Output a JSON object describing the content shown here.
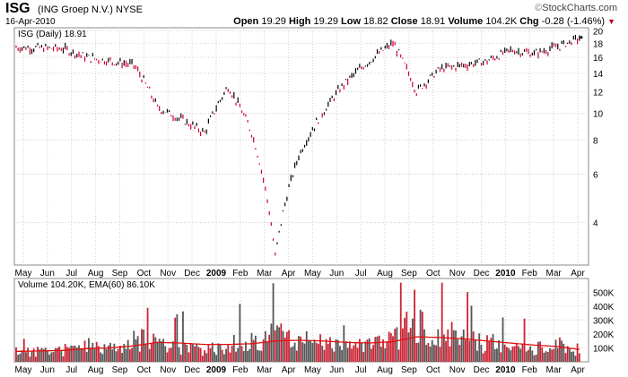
{
  "header": {
    "symbol": "ISG",
    "company": "(ING Groep N.V.)",
    "exchange": "NYSE",
    "date": "16-Apr-2010",
    "brand": "StockCharts.com",
    "open_label": "Open",
    "open": "19.29",
    "high_label": "High",
    "high": "19.29",
    "low_label": "Low",
    "low": "18.82",
    "close_label": "Close",
    "close": "18.91",
    "volume_label": "Volume",
    "volume": "104.2K",
    "chg_label": "Chg",
    "chg": "-0.28 (-1.46%)"
  },
  "price_panel": {
    "legend": "ISG (Daily) 18.91",
    "y_ticks": [
      20,
      18,
      16,
      14,
      12,
      10,
      8,
      6,
      4
    ],
    "scale": "log",
    "ylim": [
      2.8,
      20.5
    ]
  },
  "volume_panel": {
    "legend": "Volume 104.20K, EMA(60) 86.10K",
    "y_ticks": [
      "500K",
      "400K",
      "300K",
      "200K",
      "100K"
    ],
    "y_values": [
      500000,
      400000,
      300000,
      200000,
      100000
    ],
    "ylim": [
      0,
      600000
    ]
  },
  "x_axis": {
    "labels": [
      "May",
      "Jun",
      "Jul",
      "Aug",
      "Sep",
      "Oct",
      "Nov",
      "Dec",
      "2009",
      "Feb",
      "Mar",
      "Apr",
      "May",
      "Jun",
      "Jul",
      "Aug",
      "Sep",
      "Oct",
      "Nov",
      "Dec",
      "2010",
      "Feb",
      "Mar",
      "Apr"
    ],
    "bold": [
      "2009",
      "2010"
    ]
  },
  "colors": {
    "up": "#000000",
    "down": "#cc0033",
    "ema": "#e01010",
    "volume_up": "#555555",
    "volume_down": "#cc2233",
    "grid": "#d0d0d0"
  },
  "chart_data": [
    {
      "type": "line",
      "title": "ISG (Daily) 18.91",
      "scale": "log",
      "x": [
        "2008-04",
        "2008-05",
        "2008-06",
        "2008-07",
        "2008-08",
        "2008-09",
        "2008-10",
        "2008-11",
        "2008-12",
        "2009-01",
        "2009-02",
        "2009-03",
        "2009-04",
        "2009-05",
        "2009-06",
        "2009-07",
        "2009-08",
        "2009-09",
        "2009-10",
        "2009-11",
        "2009-12",
        "2010-01",
        "2010-02",
        "2010-03",
        "2010-04"
      ],
      "series": [
        {
          "name": "ISG",
          "values": [
            17.4,
            17.3,
            17.2,
            16.0,
            15.5,
            15.0,
            10.5,
            9.5,
            8.5,
            12.5,
            8.5,
            3.0,
            7.0,
            10.0,
            13.0,
            15.5,
            18.0,
            12.0,
            14.5,
            15.0,
            15.5,
            17.0,
            16.5,
            17.5,
            18.91
          ]
        }
      ],
      "ylim": [
        2.8,
        20.5
      ]
    },
    {
      "type": "bar",
      "title": "Volume 104.20K, EMA(60) 86.10K",
      "x": [
        "2008-04",
        "2008-05",
        "2008-06",
        "2008-07",
        "2008-08",
        "2008-09",
        "2008-10",
        "2008-11",
        "2008-12",
        "2009-01",
        "2009-02",
        "2009-03",
        "2009-04",
        "2009-05",
        "2009-06",
        "2009-07",
        "2009-08",
        "2009-09",
        "2009-10",
        "2009-11",
        "2009-12",
        "2010-01",
        "2010-02",
        "2010-03",
        "2010-04"
      ],
      "series": [
        {
          "name": "Volume",
          "values": [
            80000,
            85000,
            90000,
            140000,
            110000,
            160000,
            200000,
            120000,
            100000,
            140000,
            150000,
            220000,
            170000,
            140000,
            120000,
            130000,
            180000,
            320000,
            220000,
            190000,
            140000,
            120000,
            110000,
            120000,
            104200
          ]
        },
        {
          "name": "EMA(60)",
          "values": [
            75000,
            78000,
            82000,
            95000,
            100000,
            115000,
            140000,
            135000,
            125000,
            125000,
            130000,
            150000,
            155000,
            150000,
            140000,
            135000,
            145000,
            180000,
            175000,
            165000,
            150000,
            135000,
            120000,
            110000,
            86100
          ]
        }
      ],
      "ylim": [
        0,
        600000
      ]
    }
  ]
}
